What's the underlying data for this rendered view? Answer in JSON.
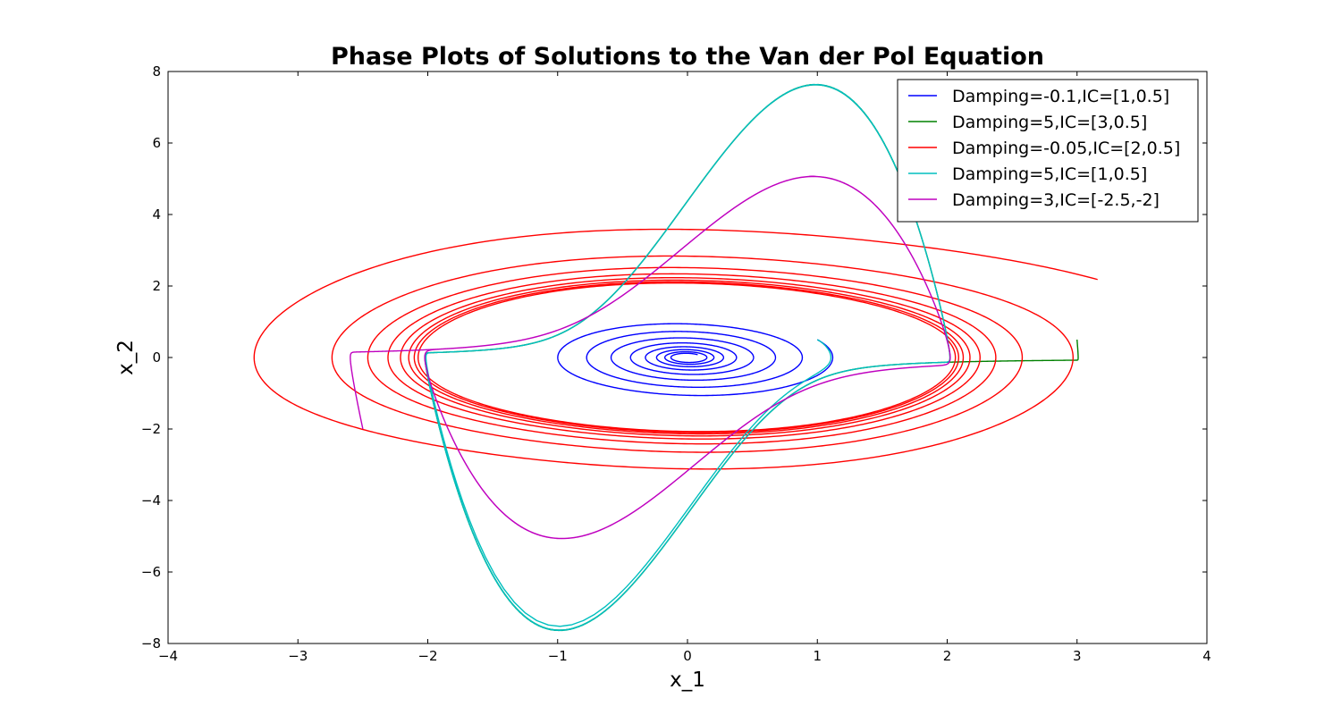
{
  "chart_data": {
    "type": "line",
    "title": "Phase Plots of Solutions to the Van der Pol Equation",
    "xlabel": "x_1",
    "ylabel": "x_2",
    "xlim": [
      -4,
      4
    ],
    "ylim": [
      -8,
      8
    ],
    "xticks": [
      "−4",
      "−3",
      "−2",
      "−1",
      "0",
      "1",
      "2",
      "3",
      "4"
    ],
    "yticks": [
      "−8",
      "−6",
      "−4",
      "−2",
      "0",
      "2",
      "4",
      "6",
      "8"
    ],
    "grid": false,
    "legend_position": "top-right",
    "series": [
      {
        "name": "Damping=-0.1,IC=[1,0.5]",
        "color": "#0000ff",
        "damping": -0.1,
        "ic": [
          1,
          0.5
        ]
      },
      {
        "name": "Damping=5,IC=[3,0.5]",
        "color": "#008000",
        "damping": 5,
        "ic": [
          3,
          0.5
        ]
      },
      {
        "name": "Damping=-0.05,IC=[2,0.5]",
        "color": "#ff0000",
        "damping": -0.05,
        "ic": [
          2,
          0.5
        ]
      },
      {
        "name": "Damping=5,IC=[1,0.5]",
        "color": "#00bfbf",
        "damping": 5,
        "ic": [
          1,
          0.5
        ]
      },
      {
        "name": "Damping=3,IC=[-2.5,-2]",
        "color": "#bf00bf",
        "damping": 3,
        "ic": [
          -2.5,
          -2
        ]
      }
    ]
  }
}
